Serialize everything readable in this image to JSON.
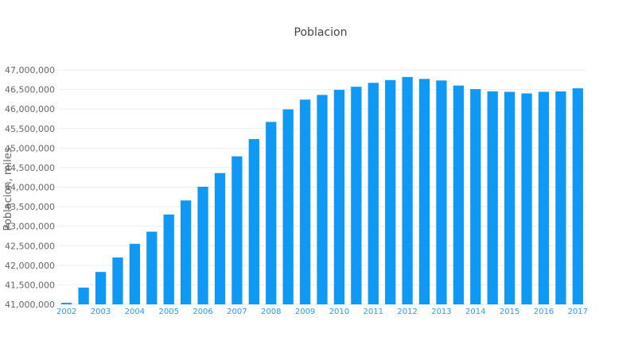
{
  "chart_data": {
    "type": "bar",
    "title": "Poblacion",
    "xlabel": "",
    "ylabel": "Poblacion, miles",
    "ylim": [
      41000000,
      47000000
    ],
    "yticks": [
      "41,000,000",
      "41,500,000",
      "42,000,000",
      "42,500,000",
      "43,000,000",
      "43,500,000",
      "44,000,000",
      "44,500,000",
      "45,000,000",
      "45,500,000",
      "46,000,000",
      "46,500,000",
      "47,000,000"
    ],
    "xticks": [
      "2002",
      "2003",
      "2004",
      "2005",
      "2006",
      "2007",
      "2008",
      "2009",
      "2010",
      "2011",
      "2012",
      "2013",
      "2014",
      "2015",
      "2016",
      "2017"
    ],
    "grid": true,
    "bar_color": "#0f99f5",
    "values": [
      41040000,
      41430000,
      41830000,
      42200000,
      42550000,
      42860000,
      43300000,
      43660000,
      44010000,
      44360000,
      44790000,
      45230000,
      45670000,
      45990000,
      46240000,
      46360000,
      46490000,
      46570000,
      46670000,
      46740000,
      46820000,
      46770000,
      46730000,
      46600000,
      46510000,
      46450000,
      46440000,
      46400000,
      46440000,
      46450000,
      46530000
    ]
  }
}
